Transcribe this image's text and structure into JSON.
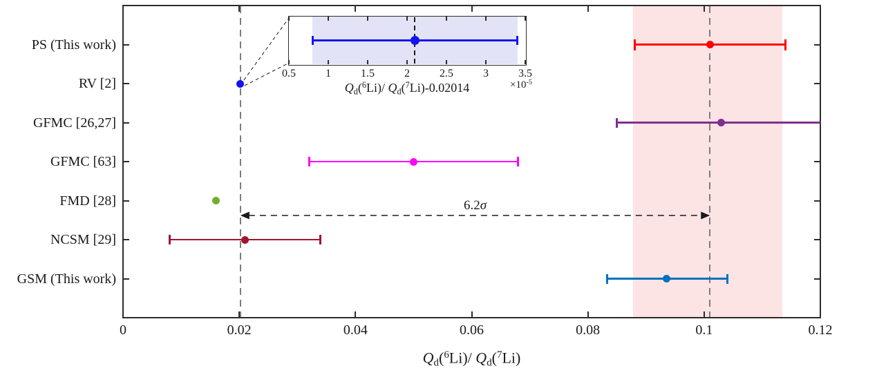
{
  "figure": {
    "background": "#ffffff",
    "axis_color": "#2b2b2b",
    "text_color": "#1a1a1a",
    "reference_line_color": "#7d7d7d"
  },
  "chart_data": [
    {
      "id": "main",
      "type": "scatter",
      "title": "",
      "xlabel": "Q_d(6Li)/ Q_d(7Li)",
      "xlabel_segments": [
        {
          "text": "Q",
          "italic": true
        },
        {
          "text": "d",
          "sub": true
        },
        {
          "text": "("
        },
        {
          "text": "6",
          "sup": true
        },
        {
          "text": "Li)/ "
        },
        {
          "text": "Q",
          "italic": true
        },
        {
          "text": "d",
          "sub": true
        },
        {
          "text": "("
        },
        {
          "text": "7",
          "sup": true
        },
        {
          "text": "Li)"
        }
      ],
      "xlim": [
        0,
        0.12
      ],
      "xticks": [
        0,
        0.02,
        0.04,
        0.06,
        0.08,
        0.1,
        0.12
      ],
      "xtick_labels": [
        "0",
        "0.02",
        "0.04",
        "0.06",
        "0.08",
        "0.1",
        "0.12"
      ],
      "grid": false,
      "legend": "none",
      "categories": [
        "PS (This work)",
        "RV [2]",
        "GFMC [26,27]",
        "GFMC [63]",
        "FMD [28]",
        "NCSM [29]",
        "GSM (This work)"
      ],
      "points": [
        {
          "category": "PS (This work)",
          "x": 0.101,
          "err_lo": 0.088,
          "err_hi": 0.114,
          "color": "#ff0000"
        },
        {
          "category": "RV [2]",
          "x": 0.0202,
          "color": "#1414f0"
        },
        {
          "category": "GFMC [26,27]",
          "x": 0.1029,
          "err_lo": 0.0849,
          "err_hi": 0.12,
          "clip_hi": true,
          "color": "#7e2f8e"
        },
        {
          "category": "GFMC [63]",
          "x": 0.05,
          "err_lo": 0.032,
          "err_hi": 0.068,
          "color": "#ff00ff"
        },
        {
          "category": "FMD [28]",
          "x": 0.016,
          "color": "#77ac30"
        },
        {
          "category": "NCSM [29]",
          "x": 0.021,
          "err_lo": 0.008,
          "err_hi": 0.034,
          "color": "#a2142f"
        },
        {
          "category": "GSM (This work)",
          "x": 0.0935,
          "err_lo": 0.0833,
          "err_hi": 0.1041,
          "color": "#0072bd"
        }
      ],
      "shaded_band": {
        "from": 0.0878,
        "to": 0.1135,
        "color": "#fce3e4"
      },
      "dashed_vlines": [
        0.0202,
        0.101
      ],
      "annotation": {
        "text": "6.2σ",
        "segments": [
          {
            "text": "6.2"
          },
          {
            "text": "σ",
            "italic": true
          }
        ],
        "arrow_from": 0.0202,
        "arrow_to": 0.101
      }
    },
    {
      "id": "inset",
      "type": "scatter",
      "xlabel": "Q_d(6Li)/ Q_d(7Li)-0.02014",
      "xlabel_segments": [
        {
          "text": "Q",
          "italic": true
        },
        {
          "text": "d",
          "sub": true
        },
        {
          "text": "("
        },
        {
          "text": "6",
          "sup": true
        },
        {
          "text": "Li)/ "
        },
        {
          "text": "Q",
          "italic": true
        },
        {
          "text": "d",
          "sub": true
        },
        {
          "text": "("
        },
        {
          "text": "7",
          "sup": true
        },
        {
          "text": "Li)-0.02014"
        }
      ],
      "x_multiplier": "×10-5",
      "x_multiplier_segments": [
        {
          "text": "×10"
        },
        {
          "text": "-5",
          "sup": true
        }
      ],
      "xlim": [
        0.5,
        3.5
      ],
      "xticks": [
        0.5,
        1,
        1.5,
        2,
        2.5,
        3,
        3.5
      ],
      "xtick_labels": [
        "0.5",
        "1",
        "1.5",
        "2",
        "2.5",
        "3",
        "3.5"
      ],
      "point": {
        "x": 2.1,
        "err_lo": 0.8,
        "err_hi": 3.4,
        "color": "#1414f0"
      },
      "shaded_band": {
        "from": 0.8,
        "to": 3.4,
        "color": "#e3e3f8"
      },
      "dashed_vline": 2.1
    }
  ]
}
